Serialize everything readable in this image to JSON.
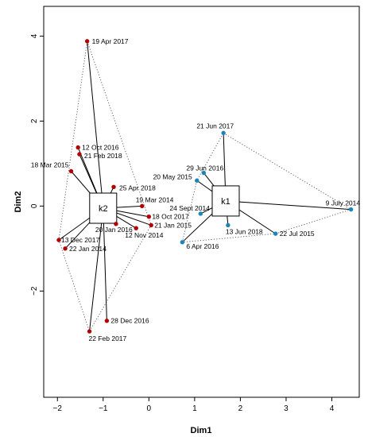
{
  "chart_data": {
    "type": "scatter",
    "title": "",
    "xlabel": "Dim1",
    "ylabel": "Dim2",
    "xlim": [
      -2.3,
      4.6
    ],
    "ylim": [
      -4.5,
      4.7
    ],
    "x_ticks": [
      -2,
      -1,
      0,
      1,
      2,
      3,
      4
    ],
    "y_ticks": [
      -2,
      0,
      2,
      4
    ],
    "grid": false,
    "legend": "none",
    "colors": {
      "k2": "#b30000",
      "k1": "#1a86b8"
    },
    "clusters": [
      {
        "name": "k2",
        "center": {
          "x": -1.0,
          "y": -0.05
        },
        "hull": [
          "19 Apr 2017",
          "21 Jan 2015",
          "22 Feb 2017",
          "13 Dec 2017"
        ],
        "points": [
          {
            "label": "19 Apr 2017",
            "x": -1.35,
            "y": 3.88
          },
          {
            "label": "12 Oct 2016",
            "x": -1.55,
            "y": 1.38
          },
          {
            "label": "21 Feb 2018",
            "x": -1.52,
            "y": 1.22
          },
          {
            "label": "18 Mar 2015",
            "x": -1.7,
            "y": 0.82
          },
          {
            "label": "25 Apr 2018",
            "x": -0.77,
            "y": 0.45
          },
          {
            "label": "19 Mar 2014",
            "x": -0.15,
            "y": 0.0
          },
          {
            "label": "18 Oct 2017",
            "x": 0.0,
            "y": -0.25
          },
          {
            "label": "21 Jan 2015",
            "x": 0.05,
            "y": -0.45
          },
          {
            "label": "20 Jan 2016",
            "x": -0.72,
            "y": -0.42
          },
          {
            "label": "12 Nov 2014",
            "x": -0.28,
            "y": -0.52
          },
          {
            "label": "13 Dec 2017",
            "x": -1.97,
            "y": -0.8
          },
          {
            "label": "22 Jan 2014",
            "x": -1.83,
            "y": -1.0
          },
          {
            "label": "28 Dec 2016",
            "x": -0.92,
            "y": -2.7
          },
          {
            "label": "22 Feb 2017",
            "x": -1.3,
            "y": -2.95
          }
        ]
      },
      {
        "name": "k1",
        "center": {
          "x": 1.68,
          "y": 0.12
        },
        "hull": [
          "21 Jun 2017",
          "9 July 2014",
          "22 Jul 2015",
          "6 Apr 2016",
          "20 May 2015"
        ],
        "points": [
          {
            "label": "21 Jun 2017",
            "x": 1.63,
            "y": 1.72
          },
          {
            "label": "29 Jun 2016",
            "x": 1.2,
            "y": 0.78
          },
          {
            "label": "20 May 2015",
            "x": 1.05,
            "y": 0.6
          },
          {
            "label": "24 Sept 2014",
            "x": 1.13,
            "y": -0.18
          },
          {
            "label": "9 July 2014",
            "x": 4.42,
            "y": -0.08
          },
          {
            "label": "13 Jun 2018",
            "x": 1.73,
            "y": -0.45
          },
          {
            "label": "22 Jul 2015",
            "x": 2.77,
            "y": -0.65
          },
          {
            "label": "6 Apr 2016",
            "x": 0.73,
            "y": -0.85
          }
        ]
      }
    ]
  }
}
